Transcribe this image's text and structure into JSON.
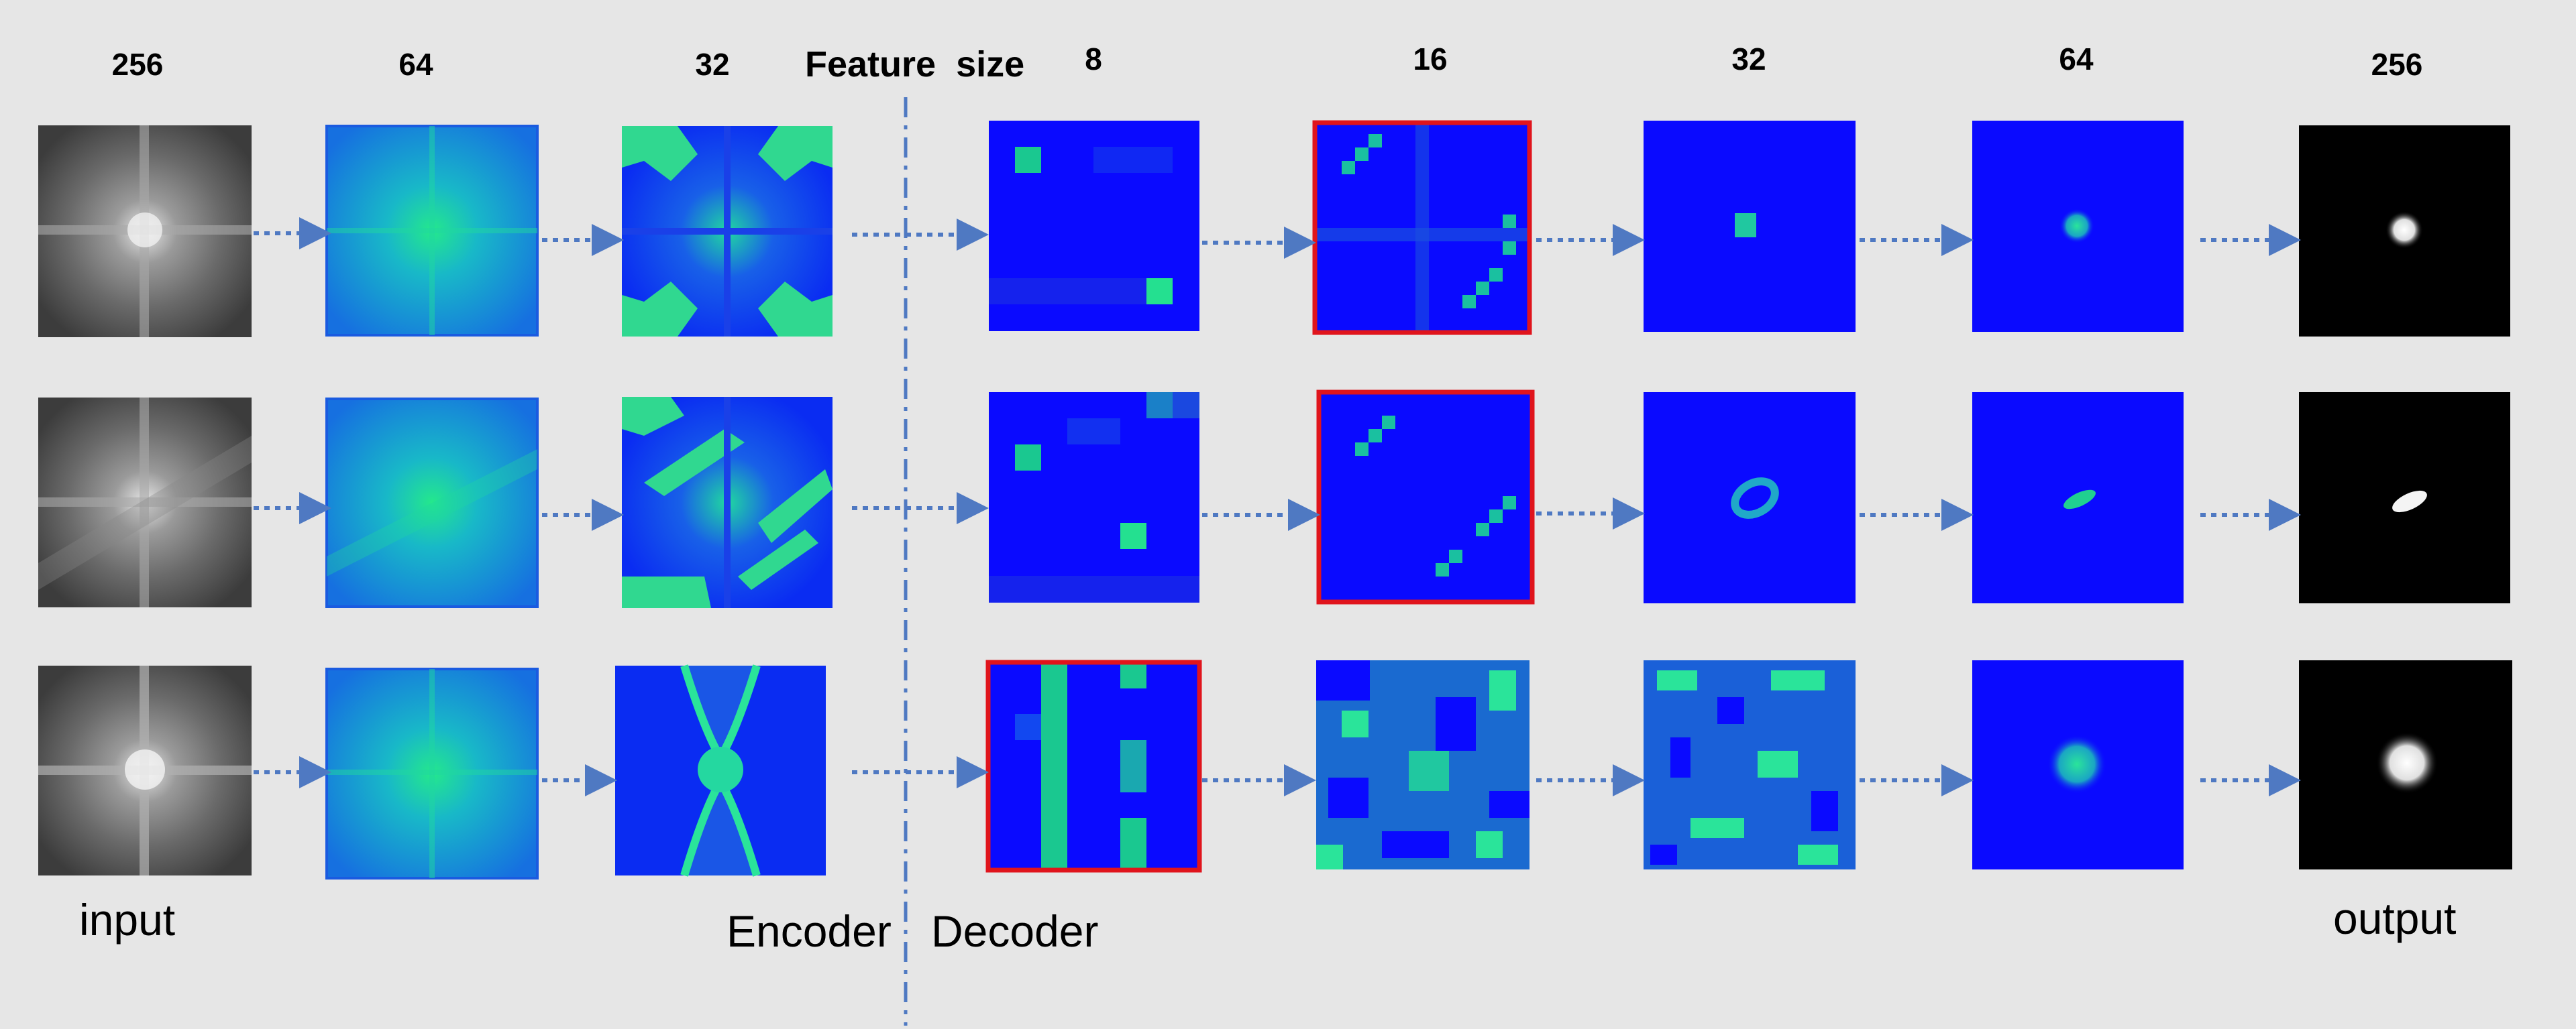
{
  "labels": {
    "sizes": [
      "256",
      "64",
      "32",
      "8",
      "16",
      "32",
      "64",
      "256"
    ],
    "feature_size": "Feature  size",
    "input": "input",
    "encoder": "Encoder",
    "decoder": "Decoder",
    "output": "output"
  },
  "colors": {
    "background": "#e6e6e6",
    "arrow": "#4f79c2",
    "divider": "#4f79c2",
    "highlight": "#e0141c",
    "feature_blue": "#0a0aff",
    "feature_green": "#1edc8c"
  },
  "grid": {
    "rows": 3,
    "columns": [
      "input-spectrum",
      "encoder-64",
      "encoder-32",
      "feature-8",
      "decoder-16",
      "decoder-32",
      "decoder-64",
      "output-image"
    ],
    "highlighted_cells": [
      [
        0,
        4
      ],
      [
        1,
        4
      ],
      [
        2,
        3
      ]
    ]
  }
}
